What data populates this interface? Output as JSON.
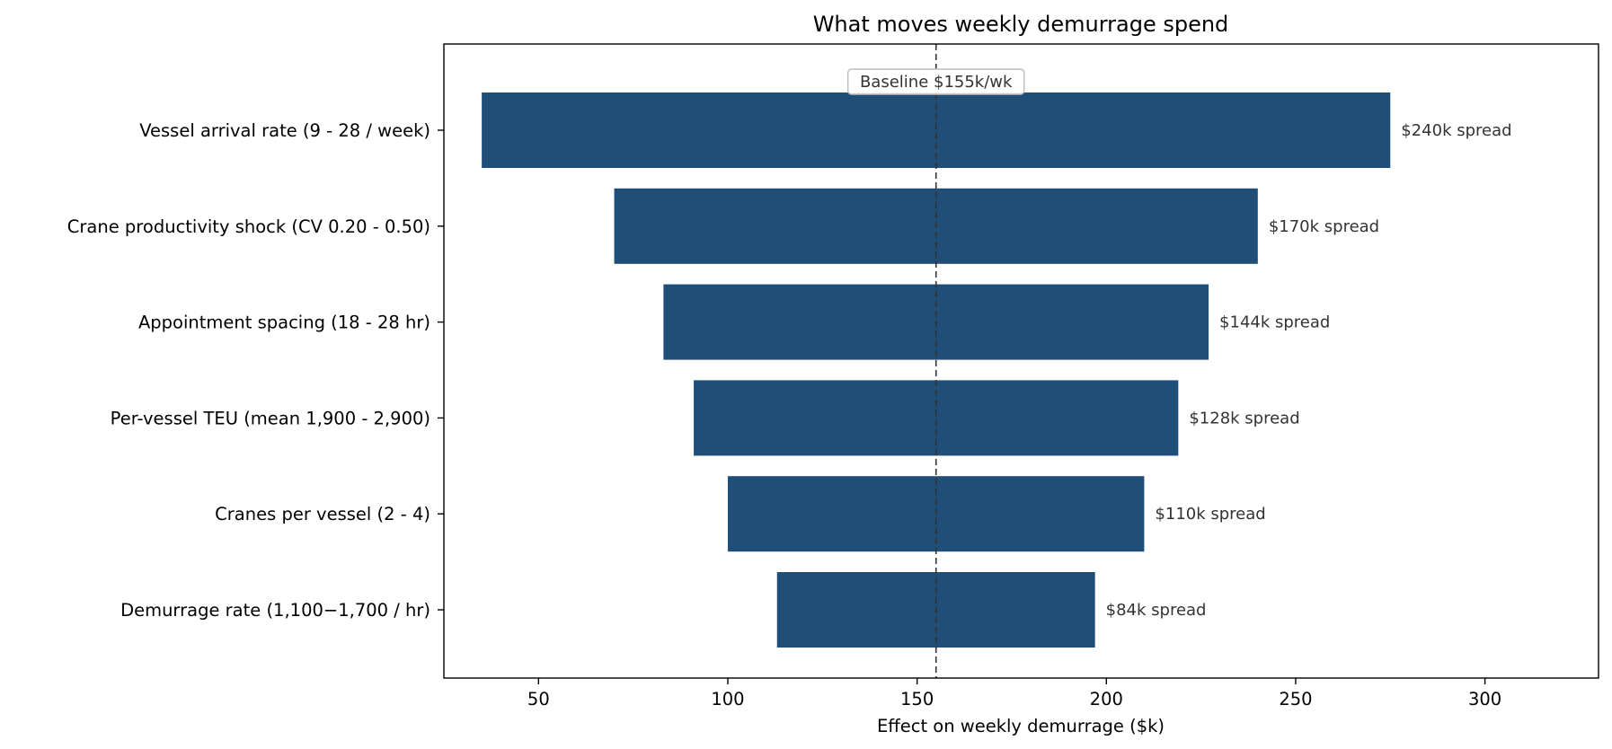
{
  "chart_data": {
    "type": "bar",
    "orientation": "horizontal",
    "subtype": "tornado",
    "title": "What moves weekly demurrage spend",
    "xlabel": "Effect on weekly demurrage  ($k)",
    "ylabel": "",
    "xlim": [
      25,
      330
    ],
    "xticks": [
      50,
      100,
      150,
      200,
      250,
      300
    ],
    "grid": false,
    "baseline": {
      "value": 155,
      "label": "Baseline $155k/wk"
    },
    "bar_color": "#1f4e79",
    "categories": [
      "Vessel arrival rate (9 - 28 / week)",
      "Crane productivity shock (CV 0.20 - 0.50)",
      "Appointment spacing (18 - 28 hr)",
      "Per-vessel TEU (mean 1,900 - 2,900)",
      "Cranes per vessel (2 - 4)",
      "Demurrage rate (1,100−1,700 / hr)"
    ],
    "low": [
      35,
      70,
      83,
      91,
      100,
      113
    ],
    "high": [
      275,
      240,
      227,
      219,
      210,
      197
    ],
    "spread_labels": [
      "$240k spread",
      "$170k spread",
      "$144k spread",
      "$128k spread",
      "$110k spread",
      "$84k spread"
    ]
  }
}
